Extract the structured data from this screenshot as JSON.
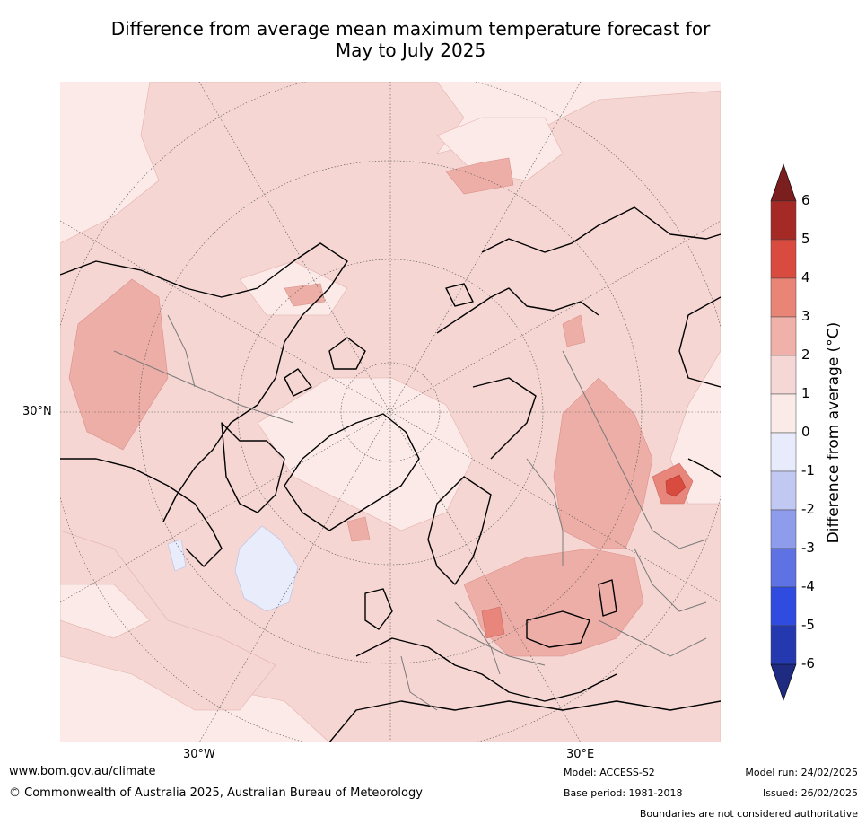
{
  "title_line1": "Difference from average mean maximum temperature forecast for",
  "title_line2": "May to July 2025",
  "map_labels": {
    "lat_30n": "30°N",
    "lon_30w": "30°W",
    "lon_30e": "30°E"
  },
  "colorbar": {
    "title": "Difference from average (°C)",
    "ticks": [
      "6",
      "5",
      "4",
      "3",
      "2",
      "1",
      "0",
      "-1",
      "-2",
      "-3",
      "-4",
      "-5",
      "-6"
    ],
    "colors_top_to_bottom": [
      "#a52a26",
      "#d94a3f",
      "#e88577",
      "#efb1aa",
      "#f5d8d5",
      "#fbebe8",
      "#e8ebfb",
      "#c1c8f2",
      "#8f9cec",
      "#5e72e3",
      "#2f4be0",
      "#2438b0"
    ],
    "extend_high_color": "#7a1f1d",
    "extend_low_color": "#1e2b80"
  },
  "map_fill_colors": {
    "ocean_base": "#fbeae8",
    "band_1_2": "#f5d6d3",
    "band_2_3": "#eeaea8",
    "band_3_4": "#e8867b",
    "band_4_5": "#d94a3f",
    "band_0_m1": "#e8ecfb"
  },
  "footer": {
    "website": "www.bom.gov.au/climate",
    "copyright": "© Commonwealth of Australia 2025, Australian Bureau of Meteorology",
    "model": "Model: ACCESS-S2",
    "base_period": "Base period: 1981-2018",
    "model_run": "Model run: 24/02/2025",
    "issued": "Issued: 26/02/2025",
    "disclaimer": "Boundaries are not considered authoritative"
  }
}
